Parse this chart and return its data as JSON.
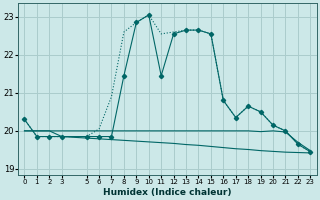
{
  "xlabel": "Humidex (Indice chaleur)",
  "bg_color": "#cce8e8",
  "grid_color": "#aacccc",
  "line_color": "#006666",
  "xlim": [
    -0.5,
    23.5
  ],
  "ylim": [
    18.85,
    23.35
  ],
  "yticks": [
    19,
    20,
    21,
    22,
    23
  ],
  "xticks": [
    0,
    1,
    2,
    3,
    5,
    6,
    7,
    8,
    9,
    10,
    11,
    12,
    13,
    14,
    15,
    16,
    17,
    18,
    19,
    20,
    21,
    22,
    23
  ],
  "curve_dot_x": [
    0,
    1,
    2,
    3,
    5,
    6,
    7,
    8,
    9,
    10,
    11,
    12,
    13,
    14,
    15,
    16,
    17,
    18,
    19,
    20,
    21,
    22,
    23
  ],
  "curve_dot_y": [
    20.3,
    19.85,
    19.85,
    19.85,
    19.85,
    20.05,
    20.9,
    22.6,
    22.85,
    23.05,
    22.55,
    22.6,
    22.65,
    22.65,
    22.55,
    20.8,
    20.35,
    20.65,
    20.5,
    20.15,
    20.0,
    19.65,
    19.45
  ],
  "curve_mark_x": [
    0,
    1,
    2,
    3,
    5,
    6,
    7,
    8,
    9,
    10,
    11,
    12,
    13,
    14,
    15,
    16,
    17,
    18,
    19,
    20,
    21,
    22,
    23
  ],
  "curve_mark_y": [
    20.3,
    19.85,
    19.85,
    19.85,
    19.85,
    19.85,
    19.85,
    21.45,
    22.85,
    23.05,
    21.45,
    22.55,
    22.65,
    22.65,
    22.55,
    20.8,
    20.35,
    20.65,
    20.5,
    20.15,
    20.0,
    19.65,
    19.45
  ],
  "curve_flat1_x": [
    0,
    1,
    2,
    3,
    4,
    5,
    6,
    7,
    8,
    9,
    10,
    11,
    12,
    13,
    14,
    15,
    16,
    17,
    18,
    19,
    20,
    21,
    22,
    23
  ],
  "curve_flat1_y": [
    20.0,
    20.0,
    20.0,
    19.85,
    19.83,
    19.81,
    19.79,
    19.77,
    19.75,
    19.73,
    19.71,
    19.69,
    19.67,
    19.64,
    19.62,
    19.59,
    19.56,
    19.53,
    19.51,
    19.48,
    19.46,
    19.44,
    19.43,
    19.42
  ],
  "curve_flat2_x": [
    0,
    1,
    2,
    3,
    4,
    5,
    6,
    7,
    8,
    9,
    10,
    11,
    12,
    13,
    14,
    15,
    16,
    17,
    18,
    19,
    20,
    21,
    22,
    23
  ],
  "curve_flat2_y": [
    20.0,
    20.0,
    20.0,
    20.0,
    20.0,
    20.0,
    20.0,
    20.0,
    20.0,
    20.0,
    20.0,
    20.0,
    20.0,
    20.0,
    20.0,
    20.0,
    20.0,
    20.0,
    20.0,
    19.98,
    20.0,
    19.97,
    19.7,
    19.48
  ]
}
